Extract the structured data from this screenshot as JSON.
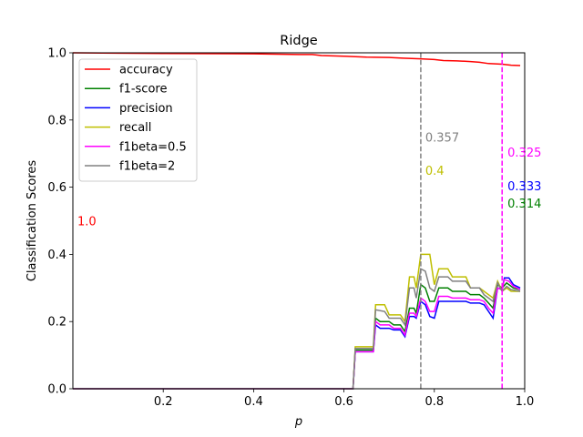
{
  "chart_data": {
    "type": "line",
    "title": "Ridge",
    "xlabel": "p",
    "ylabel": "Classification Scores",
    "xlim": [
      0.0,
      1.0
    ],
    "ylim": [
      0.0,
      1.0
    ],
    "xticks": [
      0.2,
      0.4,
      0.6,
      0.8,
      1.0
    ],
    "yticks": [
      0.0,
      0.2,
      0.4,
      0.6,
      0.8,
      1.0
    ],
    "grid": false,
    "legend_position": "upper-left",
    "series": [
      {
        "name": "accuracy",
        "color": "#ff0000",
        "points": [
          [
            0.0,
            1.0
          ],
          [
            0.2,
            0.998
          ],
          [
            0.4,
            0.997
          ],
          [
            0.5,
            0.995
          ],
          [
            0.53,
            0.995
          ],
          [
            0.55,
            0.992
          ],
          [
            0.6,
            0.99
          ],
          [
            0.65,
            0.987
          ],
          [
            0.7,
            0.986
          ],
          [
            0.73,
            0.984
          ],
          [
            0.77,
            0.982
          ],
          [
            0.8,
            0.98
          ],
          [
            0.82,
            0.977
          ],
          [
            0.85,
            0.976
          ],
          [
            0.88,
            0.974
          ],
          [
            0.9,
            0.972
          ],
          [
            0.92,
            0.968
          ],
          [
            0.95,
            0.966
          ],
          [
            0.97,
            0.963
          ],
          [
            0.99,
            0.962
          ]
        ]
      },
      {
        "name": "f1-score",
        "color": "#008000",
        "points": [
          [
            0.0,
            0.0
          ],
          [
            0.62,
            0.0
          ],
          [
            0.625,
            0.115
          ],
          [
            0.665,
            0.115
          ],
          [
            0.67,
            0.21
          ],
          [
            0.68,
            0.2
          ],
          [
            0.7,
            0.2
          ],
          [
            0.71,
            0.19
          ],
          [
            0.725,
            0.19
          ],
          [
            0.735,
            0.17
          ],
          [
            0.745,
            0.24
          ],
          [
            0.755,
            0.24
          ],
          [
            0.76,
            0.225
          ],
          [
            0.77,
            0.31
          ],
          [
            0.78,
            0.3
          ],
          [
            0.79,
            0.26
          ],
          [
            0.8,
            0.26
          ],
          [
            0.81,
            0.3
          ],
          [
            0.83,
            0.3
          ],
          [
            0.84,
            0.29
          ],
          [
            0.87,
            0.29
          ],
          [
            0.88,
            0.28
          ],
          [
            0.9,
            0.28
          ],
          [
            0.91,
            0.27
          ],
          [
            0.92,
            0.255
          ],
          [
            0.93,
            0.24
          ],
          [
            0.94,
            0.31
          ],
          [
            0.95,
            0.3
          ],
          [
            0.96,
            0.315
          ],
          [
            0.975,
            0.3
          ],
          [
            0.99,
            0.295
          ]
        ]
      },
      {
        "name": "precision",
        "color": "#0000ff",
        "points": [
          [
            0.0,
            0.0
          ],
          [
            0.62,
            0.0
          ],
          [
            0.625,
            0.11
          ],
          [
            0.665,
            0.11
          ],
          [
            0.67,
            0.19
          ],
          [
            0.68,
            0.18
          ],
          [
            0.7,
            0.18
          ],
          [
            0.71,
            0.175
          ],
          [
            0.725,
            0.175
          ],
          [
            0.735,
            0.155
          ],
          [
            0.745,
            0.215
          ],
          [
            0.755,
            0.215
          ],
          [
            0.76,
            0.21
          ],
          [
            0.77,
            0.26
          ],
          [
            0.78,
            0.25
          ],
          [
            0.79,
            0.215
          ],
          [
            0.8,
            0.21
          ],
          [
            0.81,
            0.26
          ],
          [
            0.83,
            0.26
          ],
          [
            0.84,
            0.26
          ],
          [
            0.87,
            0.26
          ],
          [
            0.88,
            0.255
          ],
          [
            0.9,
            0.255
          ],
          [
            0.91,
            0.25
          ],
          [
            0.92,
            0.23
          ],
          [
            0.93,
            0.21
          ],
          [
            0.94,
            0.3
          ],
          [
            0.95,
            0.295
          ],
          [
            0.955,
            0.33
          ],
          [
            0.965,
            0.33
          ],
          [
            0.975,
            0.31
          ],
          [
            0.99,
            0.3
          ]
        ]
      },
      {
        "name": "recall",
        "color": "#bfbf00",
        "points": [
          [
            0.0,
            0.0
          ],
          [
            0.62,
            0.0
          ],
          [
            0.625,
            0.125
          ],
          [
            0.665,
            0.125
          ],
          [
            0.67,
            0.25
          ],
          [
            0.69,
            0.25
          ],
          [
            0.7,
            0.22
          ],
          [
            0.725,
            0.22
          ],
          [
            0.735,
            0.2
          ],
          [
            0.745,
            0.333
          ],
          [
            0.755,
            0.333
          ],
          [
            0.76,
            0.3
          ],
          [
            0.77,
            0.4
          ],
          [
            0.79,
            0.4
          ],
          [
            0.8,
            0.31
          ],
          [
            0.81,
            0.357
          ],
          [
            0.83,
            0.357
          ],
          [
            0.84,
            0.333
          ],
          [
            0.87,
            0.333
          ],
          [
            0.88,
            0.3
          ],
          [
            0.9,
            0.3
          ],
          [
            0.91,
            0.29
          ],
          [
            0.92,
            0.28
          ],
          [
            0.93,
            0.27
          ],
          [
            0.94,
            0.32
          ],
          [
            0.95,
            0.29
          ],
          [
            0.96,
            0.3
          ],
          [
            0.97,
            0.29
          ],
          [
            0.99,
            0.29
          ]
        ]
      },
      {
        "name": "f1beta=0.5",
        "color": "#ff00ff",
        "points": [
          [
            0.0,
            0.0
          ],
          [
            0.62,
            0.0
          ],
          [
            0.625,
            0.11
          ],
          [
            0.665,
            0.11
          ],
          [
            0.67,
            0.2
          ],
          [
            0.68,
            0.19
          ],
          [
            0.7,
            0.19
          ],
          [
            0.71,
            0.18
          ],
          [
            0.725,
            0.18
          ],
          [
            0.735,
            0.16
          ],
          [
            0.745,
            0.225
          ],
          [
            0.755,
            0.225
          ],
          [
            0.76,
            0.215
          ],
          [
            0.77,
            0.27
          ],
          [
            0.78,
            0.26
          ],
          [
            0.79,
            0.23
          ],
          [
            0.8,
            0.23
          ],
          [
            0.81,
            0.275
          ],
          [
            0.83,
            0.275
          ],
          [
            0.84,
            0.27
          ],
          [
            0.87,
            0.27
          ],
          [
            0.88,
            0.265
          ],
          [
            0.9,
            0.265
          ],
          [
            0.91,
            0.26
          ],
          [
            0.92,
            0.24
          ],
          [
            0.93,
            0.225
          ],
          [
            0.94,
            0.3
          ],
          [
            0.95,
            0.295
          ],
          [
            0.955,
            0.325
          ],
          [
            0.965,
            0.32
          ],
          [
            0.975,
            0.305
          ],
          [
            0.99,
            0.295
          ]
        ]
      },
      {
        "name": "f1beta=2",
        "color": "#808080",
        "points": [
          [
            0.0,
            0.0
          ],
          [
            0.62,
            0.0
          ],
          [
            0.625,
            0.12
          ],
          [
            0.665,
            0.12
          ],
          [
            0.67,
            0.235
          ],
          [
            0.69,
            0.23
          ],
          [
            0.7,
            0.21
          ],
          [
            0.725,
            0.21
          ],
          [
            0.735,
            0.19
          ],
          [
            0.745,
            0.3
          ],
          [
            0.755,
            0.3
          ],
          [
            0.76,
            0.27
          ],
          [
            0.77,
            0.357
          ],
          [
            0.78,
            0.35
          ],
          [
            0.79,
            0.3
          ],
          [
            0.8,
            0.29
          ],
          [
            0.81,
            0.333
          ],
          [
            0.83,
            0.333
          ],
          [
            0.84,
            0.32
          ],
          [
            0.87,
            0.32
          ],
          [
            0.88,
            0.3
          ],
          [
            0.9,
            0.3
          ],
          [
            0.91,
            0.28
          ],
          [
            0.92,
            0.27
          ],
          [
            0.93,
            0.26
          ],
          [
            0.94,
            0.315
          ],
          [
            0.95,
            0.29
          ],
          [
            0.96,
            0.305
          ],
          [
            0.97,
            0.295
          ],
          [
            0.99,
            0.29
          ]
        ]
      }
    ],
    "vlines": [
      {
        "x": 0.77,
        "color": "#808080",
        "style": "dashed"
      },
      {
        "x": 0.95,
        "color": "#ff00ff",
        "style": "dashed"
      }
    ],
    "annotations": [
      {
        "text": "1.0",
        "x": 0.01,
        "y": 0.5,
        "color": "#ff0000"
      },
      {
        "text": "0.357",
        "x": 0.78,
        "y": 0.75,
        "color": "#808080"
      },
      {
        "text": "0.4",
        "x": 0.78,
        "y": 0.65,
        "color": "#bfbf00"
      },
      {
        "text": "0.325",
        "x": 0.962,
        "y": 0.705,
        "color": "#ff00ff"
      },
      {
        "text": "0.333",
        "x": 0.962,
        "y": 0.605,
        "color": "#0000ff"
      },
      {
        "text": "0.314",
        "x": 0.962,
        "y": 0.553,
        "color": "#008000"
      }
    ]
  }
}
